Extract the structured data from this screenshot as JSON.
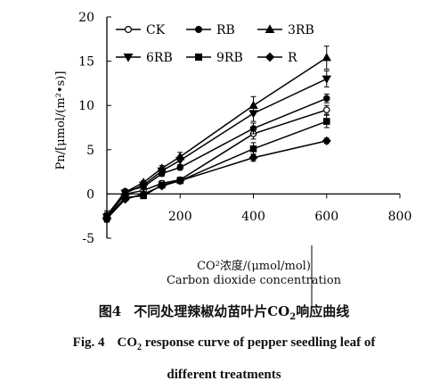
{
  "chart_data": {
    "type": "line",
    "ylabel": "Pn/[μmol/(m²•s)]",
    "xlabel_cn": "CO²浓度/(μmol/mol)",
    "xlabel_en": "Carbon dioxide concentration",
    "xlim": [
      0,
      800
    ],
    "ylim": [
      -5,
      20
    ],
    "xticks": [
      "200",
      "400",
      "600",
      "800"
    ],
    "yticks": [
      "-5",
      "0",
      "5",
      "10",
      "15",
      "20"
    ],
    "grid": false,
    "legend_position": "top-left",
    "x": [
      0,
      50,
      100,
      150,
      200,
      400,
      600
    ],
    "series": [
      {
        "name": "CK",
        "marker": "open-circle",
        "values": [
          -2.6,
          0.0,
          0.4,
          1.2,
          1.6,
          6.8,
          9.5
        ],
        "err": [
          0.4,
          0.2,
          0.2,
          0.3,
          0.3,
          0.6,
          0.5
        ]
      },
      {
        "name": "RB",
        "marker": "circle",
        "values": [
          -2.5,
          0.3,
          0.8,
          2.3,
          3.0,
          7.4,
          10.8
        ],
        "err": [
          0.4,
          0.2,
          0.2,
          0.3,
          0.3,
          0.6,
          0.5
        ]
      },
      {
        "name": "3RB",
        "marker": "triangle",
        "values": [
          -2.4,
          0.2,
          1.3,
          2.9,
          4.2,
          10.0,
          15.4
        ],
        "err": [
          0.5,
          0.2,
          0.2,
          0.3,
          0.5,
          1.0,
          1.3
        ]
      },
      {
        "name": "6RB",
        "marker": "triangle-down",
        "values": [
          -2.6,
          0.1,
          1.0,
          2.6,
          3.8,
          9.1,
          13.0
        ],
        "err": [
          0.4,
          0.2,
          0.2,
          0.3,
          0.5,
          0.9,
          0.9
        ]
      },
      {
        "name": "9RB",
        "marker": "square",
        "values": [
          -2.7,
          -0.4,
          -0.2,
          1.0,
          1.5,
          5.1,
          8.2
        ],
        "err": [
          0.4,
          0.2,
          0.2,
          0.3,
          0.3,
          0.7,
          0.7
        ]
      },
      {
        "name": "R",
        "marker": "diamond",
        "values": [
          -2.8,
          -0.6,
          0.0,
          0.9,
          1.5,
          4.1,
          6.0
        ],
        "err": [
          0.4,
          0.2,
          0.2,
          0.2,
          0.3,
          0.4,
          0.3
        ]
      }
    ]
  },
  "caption": {
    "cn_number": "图4",
    "cn_text_before": "不同处理辣椒幼苗叶片",
    "cn_co": "CO",
    "cn_sub": "2",
    "cn_text_after": "响应曲线",
    "en_number": "Fig. 4",
    "en_co": "CO",
    "en_sub": "2",
    "en_line1_after": " response curve of pepper seedling leaf of",
    "en_line2": "different treatments"
  }
}
